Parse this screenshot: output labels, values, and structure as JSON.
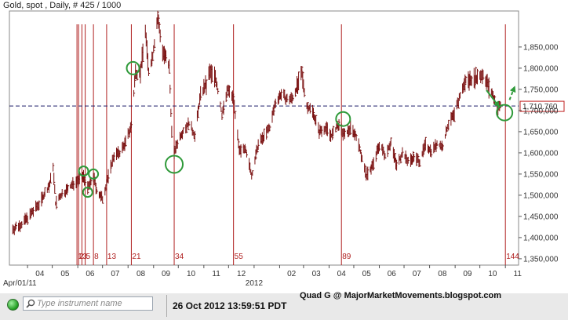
{
  "title": "Gold, spot , Daily, # 425 / 1000",
  "status_bar": {
    "search_placeholder": "Type instrument name",
    "timestamp": "26 Oct 2012 13:59:51 PDT"
  },
  "watermark": "Quad G @ MajorMarketMovements.blogspot.com",
  "colors": {
    "price_bars": "#7a1010",
    "fib_lines": "#b02020",
    "dashed_line": "#1a1a66",
    "circles": "#2f9a3a",
    "arrows": "#2f9a3a"
  },
  "chart_data": {
    "type": "bar",
    "title": "Gold, spot , Daily, # 425 / 1000",
    "y_axis": {
      "position": "right",
      "ylim": [
        1335,
        1935
      ],
      "ticks": [
        1350,
        1400,
        1450,
        1500,
        1550,
        1600,
        1650,
        1700,
        1750,
        1800,
        1850
      ],
      "tick_labels": [
        "1,350,000",
        "1,400,000",
        "1,450,000",
        "1,500,000",
        "1,550,000",
        "1,600,000",
        "1,650,000",
        "1,700,000",
        "1,750,000",
        "1,800,000",
        "1,850,000"
      ]
    },
    "x_axis": {
      "range": [
        "2011-03-10",
        "2012-11-17"
      ],
      "month_ticks": [
        {
          "date": "2011-04-01",
          "label": "04"
        },
        {
          "date": "2011-05-01",
          "label": "05"
        },
        {
          "date": "2011-06-01",
          "label": "06"
        },
        {
          "date": "2011-07-01",
          "label": "07"
        },
        {
          "date": "2011-08-01",
          "label": "08"
        },
        {
          "date": "2011-09-01",
          "label": "09"
        },
        {
          "date": "2011-10-01",
          "label": "10"
        },
        {
          "date": "2011-11-01",
          "label": "11"
        },
        {
          "date": "2011-12-01",
          "label": "12"
        },
        {
          "date": "2012-01-01",
          "label": ""
        },
        {
          "date": "2012-02-01",
          "label": "02"
        },
        {
          "date": "2012-03-01",
          "label": "03"
        },
        {
          "date": "2012-04-01",
          "label": "04"
        },
        {
          "date": "2012-05-01",
          "label": "05"
        },
        {
          "date": "2012-06-01",
          "label": "06"
        },
        {
          "date": "2012-07-01",
          "label": "07"
        },
        {
          "date": "2012-08-01",
          "label": "08"
        },
        {
          "date": "2012-09-01",
          "label": "09"
        },
        {
          "date": "2012-10-01",
          "label": "10"
        },
        {
          "date": "2012-11-01",
          "label": "11"
        }
      ],
      "secondary_labels": [
        {
          "date": "2011-04-01",
          "label": "Apr/01/11"
        },
        {
          "date": "2012-01-01",
          "label": "2012"
        }
      ]
    },
    "current_price": {
      "value": 1710.76,
      "label": "1,710.760"
    },
    "fibonacci_time_lines": [
      {
        "date": "2011-05-31",
        "label": "1"
      },
      {
        "date": "2011-06-02",
        "label": "2"
      },
      {
        "date": "2011-06-06",
        "label": "3"
      },
      {
        "date": "2011-06-10",
        "label": "5"
      },
      {
        "date": "2011-06-20",
        "label": "8"
      },
      {
        "date": "2011-07-06",
        "label": "13"
      },
      {
        "date": "2011-08-05",
        "label": "21"
      },
      {
        "date": "2011-09-26",
        "label": "34"
      },
      {
        "date": "2011-12-07",
        "label": "55"
      },
      {
        "date": "2012-04-16",
        "label": "89"
      },
      {
        "date": "2012-11-01",
        "label": "144"
      }
    ],
    "price_path": [
      [
        "2011-03-14",
        1420
      ],
      [
        "2011-03-25",
        1432
      ],
      [
        "2011-04-05",
        1455
      ],
      [
        "2011-04-15",
        1480
      ],
      [
        "2011-04-28",
        1525
      ],
      [
        "2011-05-02",
        1570
      ],
      [
        "2011-05-05",
        1480
      ],
      [
        "2011-05-12",
        1500
      ],
      [
        "2011-05-20",
        1515
      ],
      [
        "2011-05-31",
        1535
      ],
      [
        "2011-06-08",
        1545
      ],
      [
        "2011-06-13",
        1515
      ],
      [
        "2011-06-17",
        1530
      ],
      [
        "2011-06-20",
        1545
      ],
      [
        "2011-06-24",
        1510
      ],
      [
        "2011-07-01",
        1490
      ],
      [
        "2011-07-08",
        1545
      ],
      [
        "2011-07-15",
        1595
      ],
      [
        "2011-07-22",
        1600
      ],
      [
        "2011-07-29",
        1625
      ],
      [
        "2011-08-05",
        1665
      ],
      [
        "2011-08-10",
        1790
      ],
      [
        "2011-08-16",
        1790
      ],
      [
        "2011-08-22",
        1890
      ],
      [
        "2011-08-26",
        1790
      ],
      [
        "2011-08-31",
        1830
      ],
      [
        "2011-09-06",
        1920
      ],
      [
        "2011-09-12",
        1840
      ],
      [
        "2011-09-20",
        1800
      ],
      [
        "2011-09-23",
        1650
      ],
      [
        "2011-09-26",
        1600
      ],
      [
        "2011-09-30",
        1625
      ],
      [
        "2011-10-06",
        1650
      ],
      [
        "2011-10-14",
        1670
      ],
      [
        "2011-10-21",
        1640
      ],
      [
        "2011-10-28",
        1740
      ],
      [
        "2011-11-04",
        1760
      ],
      [
        "2011-11-08",
        1790
      ],
      [
        "2011-11-15",
        1780
      ],
      [
        "2011-11-23",
        1690
      ],
      [
        "2011-11-30",
        1750
      ],
      [
        "2011-12-07",
        1730
      ],
      [
        "2011-12-14",
        1600
      ],
      [
        "2011-12-21",
        1615
      ],
      [
        "2011-12-29",
        1545
      ],
      [
        "2012-01-06",
        1620
      ],
      [
        "2012-01-13",
        1640
      ],
      [
        "2012-01-20",
        1660
      ],
      [
        "2012-01-27",
        1720
      ],
      [
        "2012-02-03",
        1740
      ],
      [
        "2012-02-10",
        1725
      ],
      [
        "2012-02-17",
        1730
      ],
      [
        "2012-02-28",
        1785
      ],
      [
        "2012-03-05",
        1710
      ],
      [
        "2012-03-12",
        1700
      ],
      [
        "2012-03-20",
        1650
      ],
      [
        "2012-03-28",
        1660
      ],
      [
        "2012-04-04",
        1640
      ],
      [
        "2012-04-12",
        1665
      ],
      [
        "2012-04-20",
        1640
      ],
      [
        "2012-04-27",
        1660
      ],
      [
        "2012-05-04",
        1640
      ],
      [
        "2012-05-10",
        1595
      ],
      [
        "2012-05-16",
        1545
      ],
      [
        "2012-05-25",
        1575
      ],
      [
        "2012-06-01",
        1620
      ],
      [
        "2012-06-08",
        1595
      ],
      [
        "2012-06-15",
        1625
      ],
      [
        "2012-06-22",
        1570
      ],
      [
        "2012-06-29",
        1600
      ],
      [
        "2012-07-06",
        1580
      ],
      [
        "2012-07-13",
        1590
      ],
      [
        "2012-07-20",
        1580
      ],
      [
        "2012-07-27",
        1620
      ],
      [
        "2012-08-03",
        1605
      ],
      [
        "2012-08-10",
        1620
      ],
      [
        "2012-08-17",
        1615
      ],
      [
        "2012-08-24",
        1670
      ],
      [
        "2012-08-31",
        1690
      ],
      [
        "2012-09-07",
        1735
      ],
      [
        "2012-09-14",
        1770
      ],
      [
        "2012-09-21",
        1775
      ],
      [
        "2012-10-01",
        1780
      ],
      [
        "2012-10-05",
        1785
      ],
      [
        "2012-10-12",
        1755
      ],
      [
        "2012-10-19",
        1725
      ],
      [
        "2012-10-23",
        1705
      ],
      [
        "2012-10-26",
        1711
      ]
    ],
    "annotations": {
      "circles": [
        {
          "date": "2011-06-08",
          "value": 1557
        },
        {
          "date": "2011-06-13",
          "value": 1507
        },
        {
          "date": "2011-06-20",
          "value": 1550
        },
        {
          "date": "2011-08-07",
          "value": 1800
        },
        {
          "date": "2011-09-26",
          "value": 1573
        },
        {
          "date": "2012-04-18",
          "value": 1680
        },
        {
          "date": "2012-10-31",
          "value": 1695
        }
      ],
      "arrows": [
        {
          "from": [
            "2012-10-09",
            1748
          ],
          "to": [
            "2012-10-24",
            1710
          ]
        },
        {
          "from": [
            "2012-11-06",
            1725
          ],
          "to": [
            "2012-11-12",
            1755
          ]
        }
      ]
    }
  }
}
